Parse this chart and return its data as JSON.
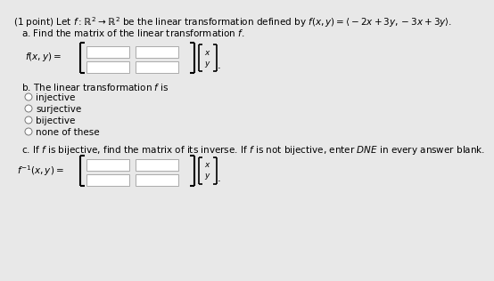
{
  "bg_color": "#e8e8e8",
  "title_line": "(1 point) Let $f : \\mathbb{R}^2 \\rightarrow \\mathbb{R}^2$ be the linear transformation defined by $f(x, y) = \\langle -2x + 3y, -3x + 3y \\rangle$.",
  "part_a_label": "a. Find the matrix of the linear transformation $f$.",
  "part_a_func": "$f(x, y) =$",
  "part_b_label": "b. The linear transformation $f$ is",
  "part_b_options": [
    "injective",
    "surjective",
    "bijective",
    "none of these"
  ],
  "part_c_label": "c. If $f$ is bijective, find the matrix of its inverse. If $f$ is not bijective, enter $DNE$ in every answer blank.",
  "part_c_func": "$f^{-1}(x, y) =$",
  "text_color": "black",
  "font_size": 7.5
}
